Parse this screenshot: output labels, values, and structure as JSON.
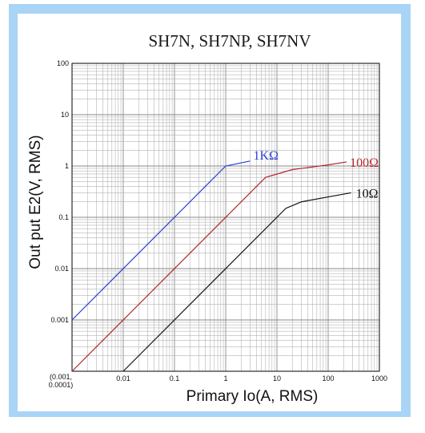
{
  "chart_data": {
    "type": "line",
    "title": "SH7N, SH7NP, SH7NV",
    "xlabel": "Primary Io(A, RMS)",
    "ylabel": "Out put E2(V, RMS)",
    "xscale": "log",
    "yscale": "log",
    "xlim": [
      0.001,
      1000
    ],
    "ylim": [
      0.0001,
      100
    ],
    "grid": true,
    "origin_label": [
      "(0.001,",
      "0.0001)"
    ],
    "x_ticks": [
      "0.01",
      "0.1",
      "1",
      "10",
      "100",
      "1000"
    ],
    "y_ticks": [
      "100",
      "10",
      "1",
      "0.1",
      "0.01",
      "0.001"
    ],
    "series": [
      {
        "name": "1KΩ",
        "label": "1KΩ",
        "color": "#2b3fd6",
        "points": [
          [
            0.001,
            0.001
          ],
          [
            1,
            1
          ],
          [
            3,
            1.25
          ]
        ]
      },
      {
        "name": "100Ω",
        "label": "100Ω",
        "color": "#b3262e",
        "points": [
          [
            0.001,
            0.0001
          ],
          [
            6,
            0.6
          ],
          [
            20,
            0.85
          ],
          [
            100,
            1.05
          ],
          [
            230,
            1.2
          ]
        ]
      },
      {
        "name": "10Ω",
        "label": "10Ω",
        "color": "#111111",
        "points": [
          [
            0.01,
            0.0001
          ],
          [
            15,
            0.15
          ],
          [
            30,
            0.2
          ],
          [
            100,
            0.25
          ],
          [
            280,
            0.3
          ]
        ]
      }
    ]
  }
}
